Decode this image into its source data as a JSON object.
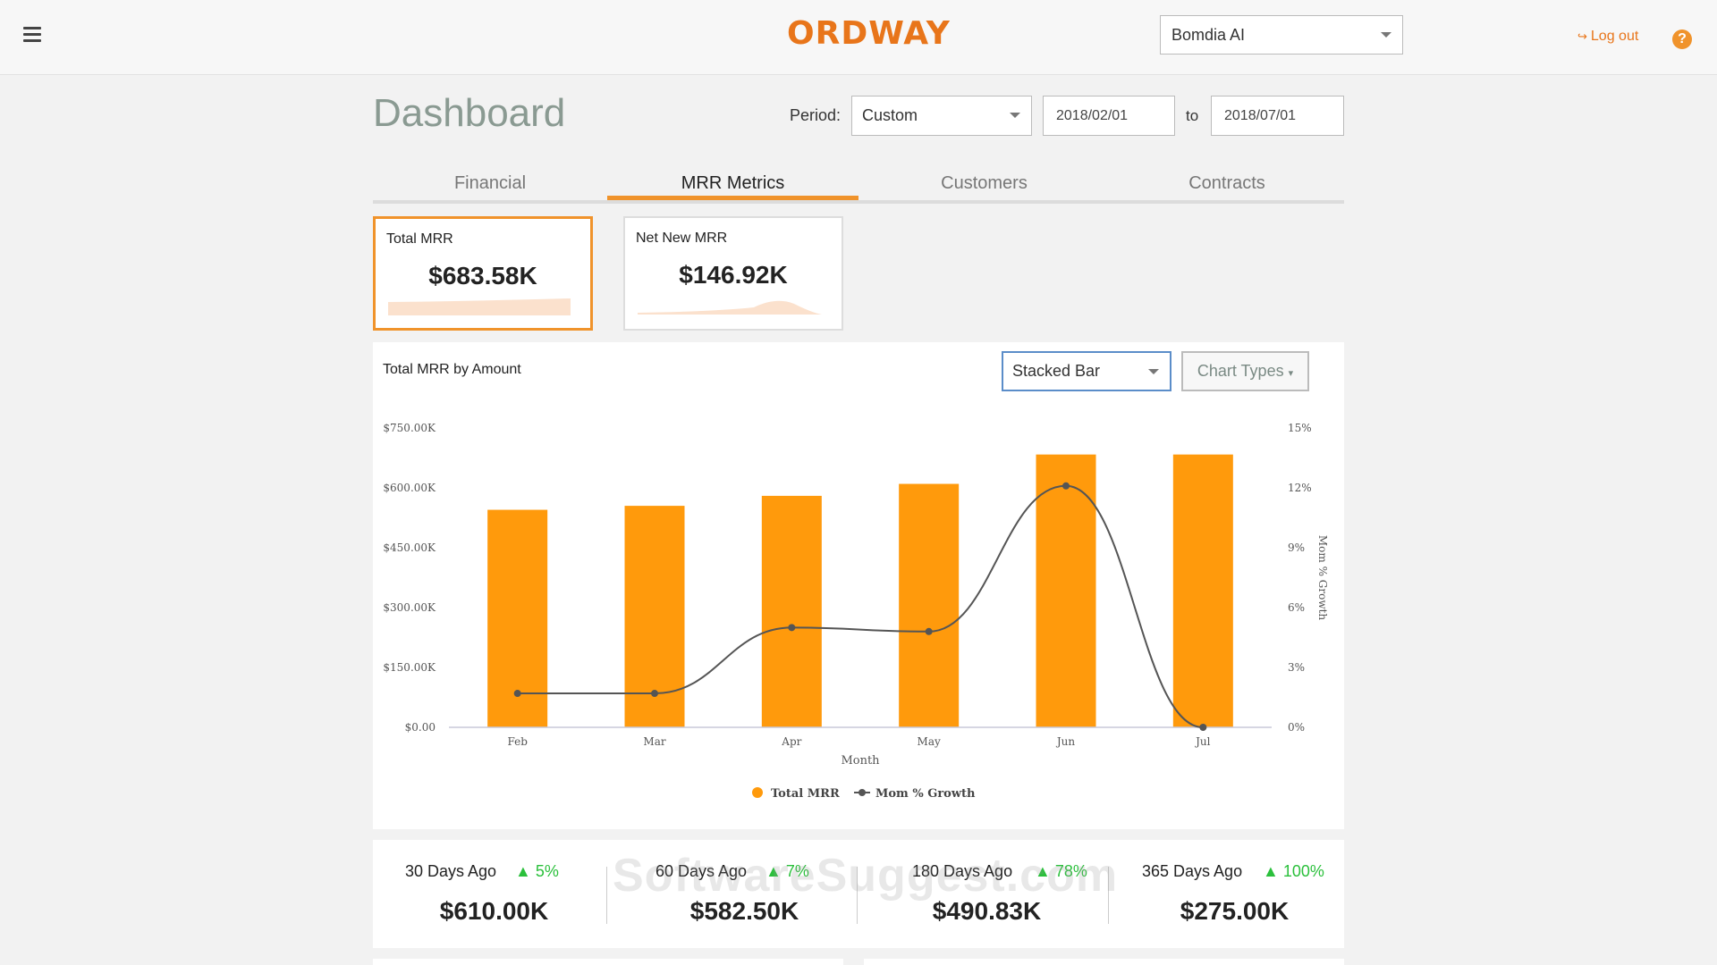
{
  "header": {
    "brand": "ORDWAY",
    "company_selected": "Bomdia AI",
    "logout_label": "Log out",
    "help_glyph": "?"
  },
  "dashboard": {
    "title": "Dashboard",
    "period_label": "Period:",
    "period_value": "Custom",
    "date_from": "2018/02/01",
    "to_label": "to",
    "date_to": "2018/07/01"
  },
  "tabs": [
    {
      "label": "Financial",
      "active": false
    },
    {
      "label": "MRR Metrics",
      "active": true
    },
    {
      "label": "Customers",
      "active": false
    },
    {
      "label": "Contracts",
      "active": false
    }
  ],
  "kpis": [
    {
      "label": "Total MRR",
      "value": "$683.58K",
      "selected": true
    },
    {
      "label": "Net New MRR",
      "value": "$146.92K",
      "selected": false
    }
  ],
  "chart_panel": {
    "title": "Total MRR by Amount",
    "chart_type_selected": "Stacked Bar",
    "chart_types_button": "Chart Types"
  },
  "chart_data": {
    "type": "bar",
    "title": "Total MRR by Amount",
    "xlabel": "Month",
    "ylabel": "",
    "y2label": "Mom % Growth",
    "categories": [
      "Feb",
      "Mar",
      "Apr",
      "May",
      "Jun",
      "Jul"
    ],
    "series": [
      {
        "name": "Total MRR",
        "type": "bar",
        "axis": "left",
        "color": "#ff9a0c",
        "values": [
          545,
          555,
          580,
          610,
          683.58,
          683.58
        ]
      },
      {
        "name": "Mom % Growth",
        "type": "line",
        "axis": "right",
        "color": "#555555",
        "values": [
          1.7,
          1.7,
          5.0,
          4.8,
          12.1,
          0
        ]
      }
    ],
    "ylim": [
      0,
      750
    ],
    "y2lim": [
      0,
      15
    ],
    "yticks": [
      "$0.00",
      "$150.00K",
      "$300.00K",
      "$450.00K",
      "$600.00K",
      "$750.00K"
    ],
    "y2ticks": [
      "0%",
      "3%",
      "6%",
      "9%",
      "12%",
      "15%"
    ],
    "legend_position": "bottom-center",
    "grid": false
  },
  "period_stats": [
    {
      "label": "30 Days Ago",
      "change": "5%",
      "value": "$610.00K"
    },
    {
      "label": "60 Days Ago",
      "change": "7%",
      "value": "$582.50K"
    },
    {
      "label": "180 Days Ago",
      "change": "78%",
      "value": "$490.83K"
    },
    {
      "label": "365 Days Ago",
      "change": "100%",
      "value": "$275.00K"
    }
  ],
  "watermark": "SoftwareSuggest.com",
  "colors": {
    "accent": "#f0932b",
    "bar": "#ff9a0c",
    "positive": "#2bc03c",
    "select_border": "#5b8dc9"
  }
}
